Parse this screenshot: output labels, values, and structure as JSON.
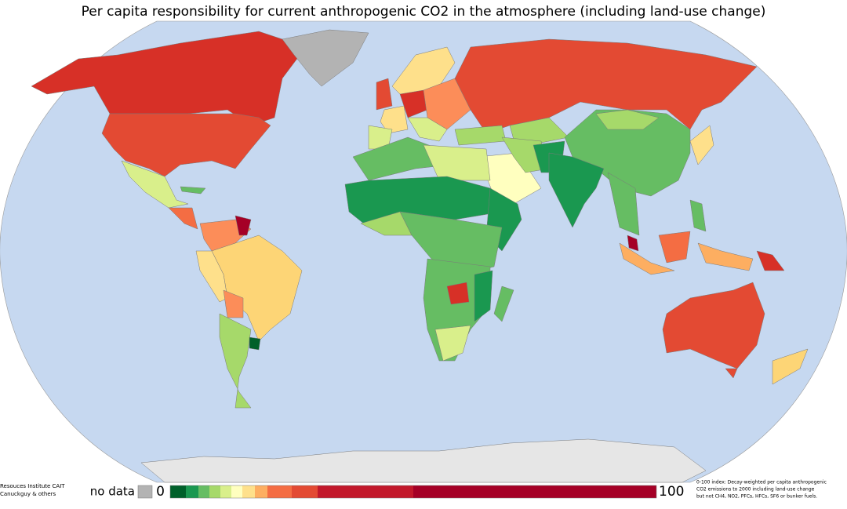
{
  "title": "Per capita responsibility for current anthropogenic CO2 in the atmosphere (including land-use change)",
  "legend": {
    "no_data": "no data",
    "min_label": "0",
    "max_label": "100"
  },
  "source": [
    "Resouces Institute CAIT",
    "Canuckguy & others"
  ],
  "note": [
    "0-100 index: Decay-weighted per capita anthropogenic",
    "CO2 emissions to 2000 including land-use change",
    "but not CH4, NO2, PFCs, HFCs, SF6 or bunker fuels."
  ]
}
